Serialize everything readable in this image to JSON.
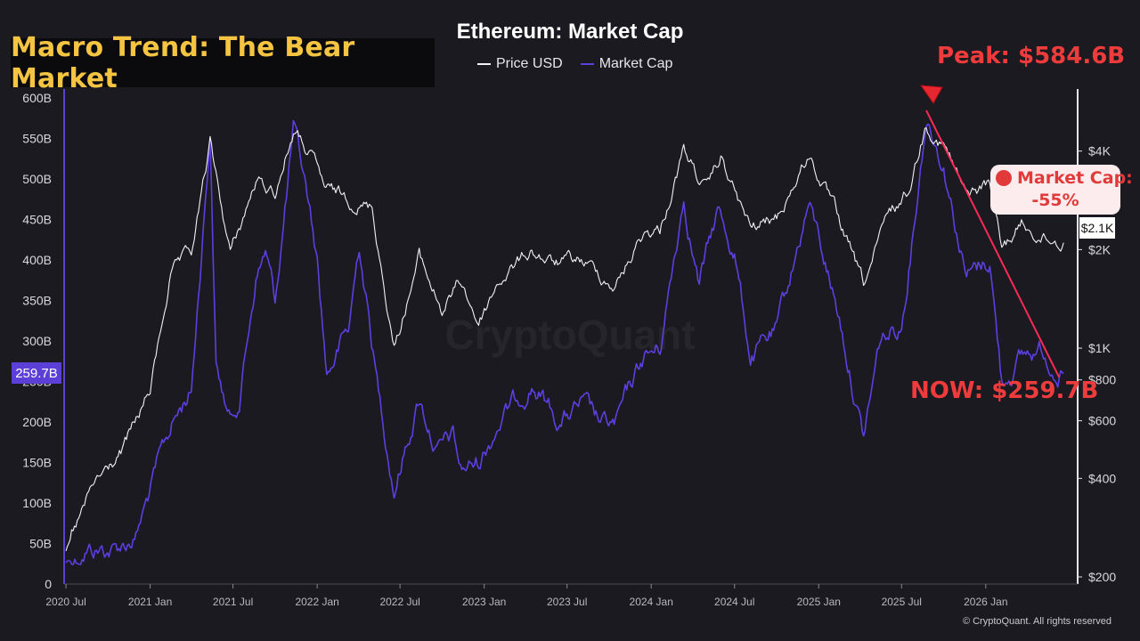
{
  "banner": {
    "text": "Macro Trend: The Bear Market"
  },
  "chart_data": {
    "type": "line",
    "title": "Ethereum: Market Cap",
    "legend_placement": "top-center",
    "series": [
      {
        "name": "Price USD",
        "color": "#f2f2f5",
        "axis": "right",
        "points": [
          [
            "2020-07-01",
            240
          ],
          [
            "2020-09-01",
            380
          ],
          [
            "2020-11-01",
            480
          ],
          [
            "2021-01-01",
            740
          ],
          [
            "2021-02-15",
            1700
          ],
          [
            "2021-04-01",
            1900
          ],
          [
            "2021-05-12",
            4150
          ],
          [
            "2021-06-25",
            1950
          ],
          [
            "2021-08-20",
            3200
          ],
          [
            "2021-10-01",
            3000
          ],
          [
            "2021-11-10",
            4600
          ],
          [
            "2021-12-20",
            3800
          ],
          [
            "2022-01-20",
            3000
          ],
          [
            "2022-03-01",
            2900
          ],
          [
            "2022-05-01",
            2700
          ],
          [
            "2022-06-18",
            1000
          ],
          [
            "2022-08-12",
            1900
          ],
          [
            "2022-10-01",
            1300
          ],
          [
            "2022-11-10",
            1600
          ],
          [
            "2022-12-20",
            1200
          ],
          [
            "2023-02-01",
            1600
          ],
          [
            "2023-04-15",
            2000
          ],
          [
            "2023-06-01",
            1800
          ],
          [
            "2023-08-01",
            1850
          ],
          [
            "2023-10-15",
            1550
          ],
          [
            "2023-12-15",
            2250
          ],
          [
            "2024-01-20",
            2300
          ],
          [
            "2024-03-12",
            4000
          ],
          [
            "2024-05-01",
            3000
          ],
          [
            "2024-06-01",
            3800
          ],
          [
            "2024-08-05",
            2300
          ],
          [
            "2024-10-01",
            2500
          ],
          [
            "2024-12-10",
            3900
          ],
          [
            "2025-02-01",
            2700
          ],
          [
            "2025-04-09",
            1550
          ],
          [
            "2025-06-01",
            2500
          ],
          [
            "2025-07-15",
            3000
          ],
          [
            "2025-08-24",
            4900
          ],
          [
            "2025-10-01",
            4200
          ],
          [
            "2025-11-20",
            2900
          ],
          [
            "2026-01-10",
            3200
          ],
          [
            "2026-02-05",
            2000
          ],
          [
            "2026-03-20",
            2400
          ],
          [
            "2026-05-01",
            2200
          ],
          [
            "2026-06-20",
            2100
          ]
        ]
      },
      {
        "name": "Market Cap",
        "color": "#5d3fe0",
        "axis": "left",
        "points": [
          [
            "2020-07-01",
            27
          ],
          [
            "2020-08-15",
            45
          ],
          [
            "2020-10-15",
            42
          ],
          [
            "2020-12-01",
            60
          ],
          [
            "2021-01-15",
            140
          ],
          [
            "2021-02-20",
            200
          ],
          [
            "2021-04-01",
            240
          ],
          [
            "2021-05-12",
            560
          ],
          [
            "2021-05-25",
            270
          ],
          [
            "2021-06-25",
            200
          ],
          [
            "2021-07-15",
            230
          ],
          [
            "2021-08-20",
            380
          ],
          [
            "2021-09-10",
            410
          ],
          [
            "2021-10-01",
            350
          ],
          [
            "2021-11-10",
            560
          ],
          [
            "2021-12-10",
            480
          ],
          [
            "2022-01-01",
            400
          ],
          [
            "2022-01-22",
            260
          ],
          [
            "2022-02-25",
            300
          ],
          [
            "2022-03-10",
            310
          ],
          [
            "2022-04-03",
            420
          ],
          [
            "2022-05-12",
            250
          ],
          [
            "2022-06-18",
            120
          ],
          [
            "2022-08-12",
            230
          ],
          [
            "2022-09-20",
            165
          ],
          [
            "2022-10-25",
            180
          ],
          [
            "2022-11-10",
            140
          ],
          [
            "2022-12-20",
            150
          ],
          [
            "2023-02-01",
            200
          ],
          [
            "2023-04-15",
            250
          ],
          [
            "2023-06-15",
            200
          ],
          [
            "2023-08-01",
            220
          ],
          [
            "2023-09-15",
            195
          ],
          [
            "2023-10-15",
            195
          ],
          [
            "2023-12-15",
            280
          ],
          [
            "2024-01-20",
            290
          ],
          [
            "2024-03-12",
            480
          ],
          [
            "2024-04-15",
            370
          ],
          [
            "2024-05-25",
            460
          ],
          [
            "2024-07-01",
            410
          ],
          [
            "2024-08-05",
            280
          ],
          [
            "2024-10-01",
            310
          ],
          [
            "2024-12-10",
            470
          ],
          [
            "2025-01-15",
            400
          ],
          [
            "2025-02-15",
            330
          ],
          [
            "2025-04-09",
            180
          ],
          [
            "2025-05-15",
            300
          ],
          [
            "2025-07-01",
            320
          ],
          [
            "2025-08-24",
            580
          ],
          [
            "2025-10-01",
            520
          ],
          [
            "2025-11-20",
            380
          ],
          [
            "2026-01-10",
            400
          ],
          [
            "2026-02-05",
            250
          ],
          [
            "2026-03-20",
            280
          ],
          [
            "2026-05-01",
            290
          ],
          [
            "2026-06-20",
            259.7
          ]
        ]
      }
    ],
    "x_ticks": [
      "2020 Jul",
      "2021 Jan",
      "2021 Jul",
      "2022 Jan",
      "2022 Jul",
      "2023 Jan",
      "2023 Jul",
      "2024 Jan",
      "2024 Jul",
      "2025 Jan",
      "2025 Jul",
      "2026 Jan"
    ],
    "x_tick_dates": [
      "2020-07-01",
      "2021-01-01",
      "2021-07-01",
      "2022-01-01",
      "2022-07-01",
      "2023-01-01",
      "2023-07-01",
      "2024-01-01",
      "2024-07-01",
      "2025-01-01",
      "2025-07-01",
      "2026-01-01"
    ],
    "xlim": [
      "2020-06-27",
      "2026-07-15"
    ],
    "y_left": {
      "ticks": [
        0,
        50,
        100,
        150,
        200,
        250,
        300,
        350,
        400,
        450,
        500,
        550,
        600
      ],
      "tick_labels": [
        "0",
        "50B",
        "100B",
        "150B",
        "200B",
        "250B",
        "300B",
        "350B",
        "400B",
        "450B",
        "500B",
        "550B",
        "600B"
      ],
      "range": [
        0,
        600
      ]
    },
    "y_right": {
      "scale": "log",
      "range": [
        200,
        5600
      ],
      "ticks": [
        200,
        400,
        600,
        800,
        1000,
        2000,
        4000
      ],
      "tick_labels": [
        "$200",
        "$400",
        "$600",
        "$800",
        "$1K",
        "$2K",
        "$4K"
      ]
    },
    "grid": false
  },
  "annotations": {
    "peak_label": "Peak: $584.6B",
    "now_label": "NOW: $259.7B",
    "drop_line1": "Market Cap:",
    "drop_line2": "-55%",
    "now_mc_badge": "259.7B",
    "now_price_badge": "$2.1K",
    "trend_from": [
      "2025-08-24",
      584.6
    ],
    "trend_to": [
      "2026-06-20",
      259.7
    ]
  },
  "watermark": "CryptoQuant",
  "copyright": "© CryptoQuant. All rights reserved",
  "colors": {
    "background": "#1b1a21",
    "price_line": "#f2f2f5",
    "market_cap_line": "#5d3fe0",
    "annotation_red": "#ee3b3b",
    "banner_text": "#f5c542",
    "banner_bg": "#0b0b0e"
  }
}
